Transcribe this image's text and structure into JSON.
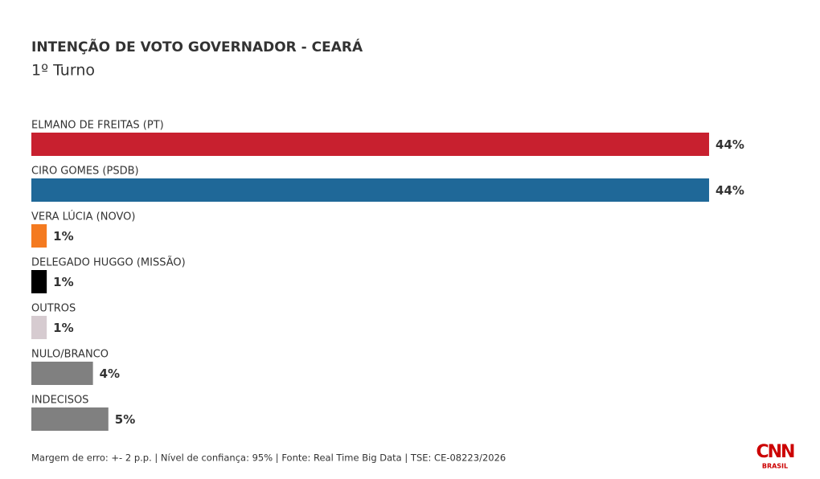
{
  "chart_data": {
    "type": "bar",
    "orientation": "horizontal",
    "title": "INTENÇÃO DE VOTO GOVERNADOR - CEARÁ",
    "subtitle": "1º Turno",
    "categories": [
      "ELMANO DE FREITAS (PT)",
      "CIRO GOMES (PSDB)",
      "VERA LÚCIA (NOVO)",
      "DELEGADO HUGGO (MISSÃO)",
      "OUTROS",
      "NULO/BRANCO",
      "INDECISOS"
    ],
    "values": [
      44,
      44,
      1,
      1,
      1,
      4,
      5
    ],
    "value_labels": [
      "44%",
      "44%",
      "1%",
      "1%",
      "1%",
      "4%",
      "5%"
    ],
    "colors": [
      "#c8202f",
      "#1f6898",
      "#f47a20",
      "#000000",
      "#d6cbd0",
      "#808080",
      "#808080"
    ],
    "note": "Margem de erro: +- 2 p.p. | Nível de confiança: 95% | Fonte: Real Time Big Data | TSE: CE-08223/2026",
    "brand": "CNN",
    "brand_sub": "BRASIL"
  }
}
